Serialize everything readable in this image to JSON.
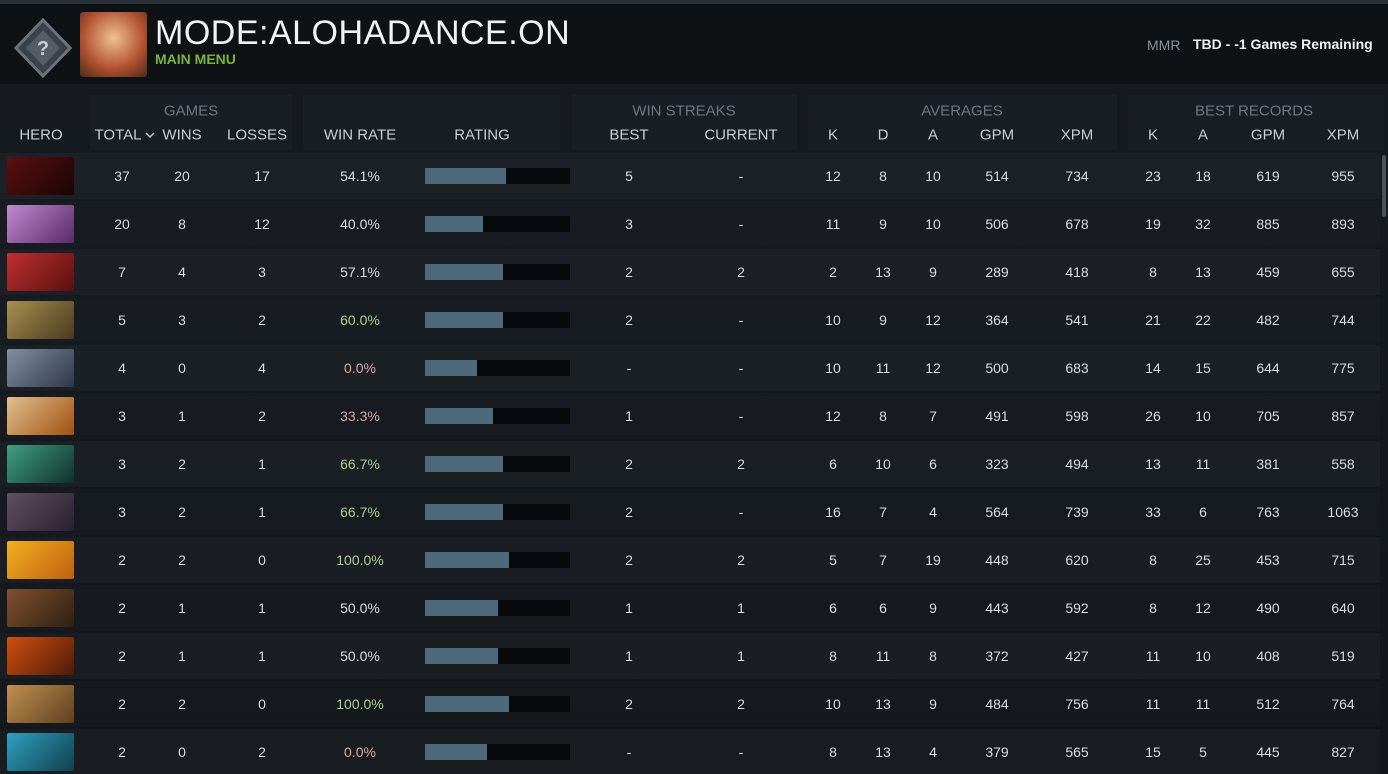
{
  "header": {
    "title": "MODE:ALOHADANCE.ON",
    "subtitle": "MAIN MENU",
    "mmr_label": "MMR",
    "mmr_value": "TBD - -1 Games Remaining"
  },
  "table": {
    "group_headers": [
      "GAMES",
      "WIN STREAKS",
      "AVERAGES",
      "BEST RECORDS"
    ],
    "columns": [
      "HERO",
      "TOTAL",
      "WINS",
      "LOSSES",
      "WIN RATE",
      "RATING",
      "BEST",
      "CURRENT",
      "K",
      "D",
      "A",
      "GPM",
      "XPM",
      "K",
      "A",
      "GPM",
      "XPM"
    ],
    "rows": [
      {
        "cells": [
          37,
          20,
          17,
          "54.1%",
          5,
          "-",
          12,
          8,
          10,
          514,
          734,
          23,
          18,
          619,
          955
        ],
        "rating": 56
      },
      {
        "cells": [
          20,
          8,
          12,
          "40.0%",
          3,
          "-",
          11,
          9,
          10,
          506,
          678,
          19,
          32,
          885,
          893
        ],
        "rating": 40
      },
      {
        "cells": [
          7,
          4,
          3,
          "57.1%",
          2,
          2,
          2,
          13,
          9,
          289,
          418,
          8,
          13,
          459,
          655
        ],
        "rating": 54
      },
      {
        "cells": [
          5,
          3,
          2,
          "60.0%",
          2,
          "-",
          10,
          9,
          12,
          364,
          541,
          21,
          22,
          482,
          744
        ],
        "rating": 54
      },
      {
        "cells": [
          4,
          0,
          4,
          "0.0%",
          "-",
          "-",
          10,
          11,
          12,
          500,
          683,
          14,
          15,
          644,
          775
        ],
        "rating": 36
      },
      {
        "cells": [
          3,
          1,
          2,
          "33.3%",
          1,
          "-",
          12,
          8,
          7,
          491,
          598,
          26,
          10,
          705,
          857
        ],
        "rating": 47
      },
      {
        "cells": [
          3,
          2,
          1,
          "66.7%",
          2,
          2,
          6,
          10,
          6,
          323,
          494,
          13,
          11,
          381,
          558
        ],
        "rating": 54
      },
      {
        "cells": [
          3,
          2,
          1,
          "66.7%",
          2,
          "-",
          16,
          7,
          4,
          564,
          739,
          33,
          6,
          763,
          1063
        ],
        "rating": 54
      },
      {
        "cells": [
          2,
          2,
          0,
          "100.0%",
          2,
          2,
          5,
          7,
          19,
          448,
          620,
          8,
          25,
          453,
          715
        ],
        "rating": 58
      },
      {
        "cells": [
          2,
          1,
          1,
          "50.0%",
          1,
          1,
          6,
          6,
          9,
          443,
          592,
          8,
          12,
          490,
          640
        ],
        "rating": 50
      },
      {
        "cells": [
          2,
          1,
          1,
          "50.0%",
          1,
          1,
          8,
          11,
          8,
          372,
          427,
          11,
          10,
          408,
          519
        ],
        "rating": 50
      },
      {
        "cells": [
          2,
          2,
          0,
          "100.0%",
          2,
          2,
          10,
          13,
          9,
          484,
          756,
          11,
          11,
          512,
          764
        ],
        "rating": 58
      },
      {
        "cells": [
          2,
          0,
          2,
          "0.0%",
          "-",
          "-",
          8,
          13,
          4,
          379,
          565,
          15,
          5,
          445,
          827
        ],
        "rating": 43
      }
    ]
  }
}
